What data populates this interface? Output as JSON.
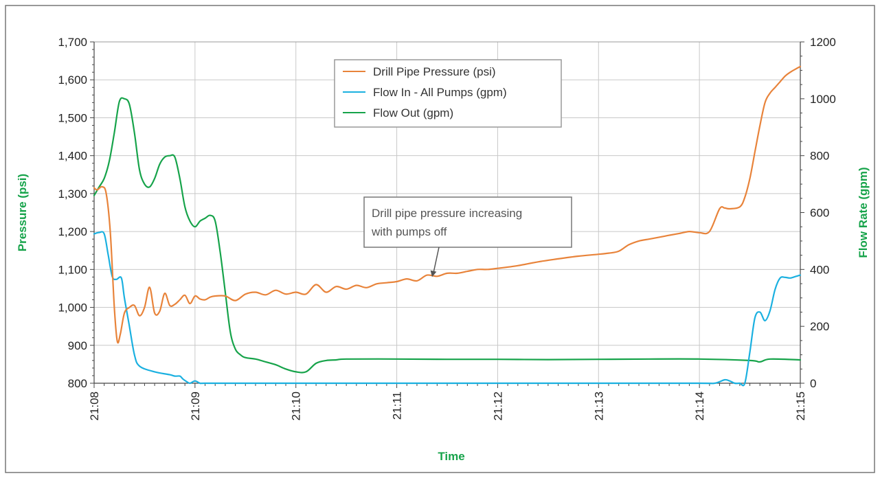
{
  "chart_data": {
    "type": "line",
    "title": "",
    "xlabel": "Time",
    "ylabel_left": "Pressure (psi)",
    "ylabel_right": "Flow Rate (gpm)",
    "x_ticks": [
      "21:08",
      "21:09",
      "21:10",
      "21:11",
      "21:12",
      "21:13",
      "21:14",
      "21:15"
    ],
    "xlim_minutes_after_2108": [
      0,
      7
    ],
    "ylim_left": [
      800,
      1700
    ],
    "ylim_right": [
      0,
      1200
    ],
    "y_ticks_left": [
      "800",
      "900",
      "1,000",
      "1,100",
      "1,200",
      "1,300",
      "1,400",
      "1,500",
      "1,600",
      "1,700"
    ],
    "y_ticks_right": [
      "0",
      "200",
      "400",
      "600",
      "800",
      "1000",
      "1200"
    ],
    "grid": true,
    "legend_position": "top-center",
    "colors": {
      "drill_pipe_pressure": "#e8833a",
      "flow_in": "#1ab0e0",
      "flow_out": "#16a34a",
      "axis_title": "#16a34a"
    },
    "series": [
      {
        "name": "Drill Pipe Pressure (psi)",
        "axis": "left",
        "x": [
          0,
          0.03,
          0.08,
          0.12,
          0.16,
          0.2,
          0.23,
          0.26,
          0.3,
          0.35,
          0.4,
          0.45,
          0.5,
          0.55,
          0.6,
          0.65,
          0.7,
          0.75,
          0.8,
          0.85,
          0.9,
          0.95,
          1.0,
          1.05,
          1.1,
          1.15,
          1.2,
          1.3,
          1.4,
          1.5,
          1.6,
          1.7,
          1.8,
          1.9,
          2.0,
          2.1,
          2.2,
          2.3,
          2.4,
          2.5,
          2.6,
          2.7,
          2.8,
          2.9,
          3.0,
          3.1,
          3.2,
          3.3,
          3.4,
          3.5,
          3.6,
          3.7,
          3.8,
          3.9,
          4.0,
          4.2,
          4.4,
          4.6,
          4.8,
          5.0,
          5.1,
          5.2,
          5.3,
          5.4,
          5.5,
          5.6,
          5.7,
          5.8,
          5.9,
          6.0,
          6.1,
          6.2,
          6.25,
          6.3,
          6.4,
          6.45,
          6.5,
          6.55,
          6.6,
          6.65,
          6.7,
          6.75,
          6.8,
          6.85,
          6.9,
          6.95,
          7.0
        ],
        "values": [
          1315,
          1310,
          1318,
          1300,
          1200,
          1000,
          910,
          930,
          985,
          1000,
          1005,
          978,
          1000,
          1053,
          985,
          990,
          1037,
          1005,
          1008,
          1020,
          1032,
          1010,
          1030,
          1022,
          1020,
          1027,
          1030,
          1030,
          1018,
          1035,
          1040,
          1033,
          1045,
          1035,
          1040,
          1035,
          1060,
          1040,
          1055,
          1048,
          1058,
          1052,
          1062,
          1065,
          1068,
          1075,
          1070,
          1085,
          1082,
          1090,
          1090,
          1095,
          1100,
          1100,
          1103,
          1110,
          1120,
          1128,
          1135,
          1140,
          1143,
          1148,
          1165,
          1175,
          1180,
          1185,
          1190,
          1195,
          1200,
          1197,
          1200,
          1260,
          1262,
          1260,
          1265,
          1290,
          1340,
          1410,
          1480,
          1540,
          1565,
          1580,
          1595,
          1610,
          1620,
          1628,
          1635
        ]
      },
      {
        "name": "Flow In - All Pumps (gpm)",
        "axis": "right",
        "x": [
          0,
          0.05,
          0.1,
          0.14,
          0.18,
          0.22,
          0.27,
          0.3,
          0.35,
          0.4,
          0.45,
          0.6,
          0.75,
          0.8,
          0.85,
          0.88,
          0.92,
          0.95,
          1.0,
          1.05,
          1.1,
          1.5,
          2.0,
          3.0,
          4.0,
          5.0,
          6.0,
          6.15,
          6.25,
          6.3,
          6.35,
          6.4,
          6.45,
          6.5,
          6.55,
          6.6,
          6.65,
          6.7,
          6.75,
          6.8,
          6.85,
          6.9,
          6.95,
          7.0
        ],
        "values": [
          525,
          530,
          525,
          450,
          375,
          365,
          370,
          300,
          200,
          100,
          60,
          40,
          30,
          25,
          25,
          15,
          5,
          0,
          8,
          0,
          0,
          0,
          0,
          0,
          0,
          0,
          0,
          0,
          12,
          8,
          0,
          0,
          0,
          110,
          230,
          250,
          220,
          255,
          330,
          370,
          372,
          370,
          375,
          380
        ]
      },
      {
        "name": "Flow Out (gpm)",
        "axis": "right",
        "x": [
          0,
          0.05,
          0.1,
          0.15,
          0.2,
          0.25,
          0.3,
          0.35,
          0.4,
          0.45,
          0.5,
          0.55,
          0.6,
          0.65,
          0.7,
          0.75,
          0.8,
          0.85,
          0.9,
          0.95,
          1.0,
          1.05,
          1.1,
          1.15,
          1.2,
          1.25,
          1.3,
          1.35,
          1.4,
          1.45,
          1.5,
          1.6,
          1.7,
          1.8,
          1.9,
          2.0,
          2.1,
          2.2,
          2.3,
          2.4,
          2.5,
          3.0,
          3.5,
          4.0,
          4.5,
          5.0,
          5.5,
          6.0,
          6.5,
          6.6,
          6.7,
          7.0
        ],
        "values": [
          660,
          690,
          720,
          780,
          880,
          990,
          1000,
          980,
          880,
          750,
          700,
          690,
          720,
          770,
          795,
          800,
          795,
          720,
          620,
          570,
          550,
          570,
          580,
          590,
          570,
          460,
          320,
          180,
          120,
          100,
          90,
          85,
          75,
          65,
          50,
          40,
          40,
          70,
          80,
          82,
          85,
          85,
          84,
          84,
          83,
          84,
          85,
          85,
          80,
          75,
          85,
          82
        ]
      }
    ],
    "annotation": {
      "text_lines": [
        "Drill pipe pressure increasing",
        "with pumps off"
      ],
      "arrow_target_x": 3.35,
      "arrow_target_y": 1080
    }
  }
}
